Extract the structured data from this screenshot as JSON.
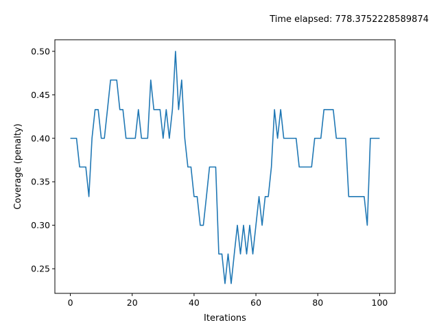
{
  "chart_data": {
    "type": "line",
    "title": "Time elapsed: 778.3752228589874",
    "xlabel": "Iterations",
    "ylabel": "Coverage (penalty)",
    "xlim": [
      -5,
      105
    ],
    "ylim": [
      0.2217,
      0.5133
    ],
    "xticks": [
      0,
      20,
      40,
      60,
      80,
      100
    ],
    "yticks": [
      0.25,
      0.3,
      0.35,
      0.4,
      0.45,
      0.5
    ],
    "grid": false,
    "colors": {
      "line": "#1f77b4",
      "axes": "#000000",
      "background": "#ffffff"
    },
    "series": [
      {
        "x": [
          0,
          1,
          2,
          3,
          4,
          5,
          6,
          7,
          8,
          9,
          10,
          11,
          12,
          13,
          14,
          15,
          16,
          17,
          18,
          19,
          20,
          21,
          22,
          23,
          24,
          25,
          26,
          27,
          28,
          29,
          30,
          31,
          32,
          33,
          34,
          35,
          36,
          37,
          38,
          39,
          40,
          41,
          42,
          43,
          44,
          45,
          46,
          47,
          48,
          49,
          50,
          51,
          52,
          53,
          54,
          55,
          56,
          57,
          58,
          59,
          60,
          61,
          62,
          63,
          64,
          65,
          66,
          67,
          68,
          69,
          70,
          71,
          72,
          73,
          74,
          75,
          76,
          77,
          78,
          79,
          80,
          81,
          82,
          83,
          84,
          85,
          86,
          87,
          88,
          89,
          90,
          91,
          92,
          93,
          94,
          95,
          96,
          97,
          98,
          99,
          100
        ],
        "y": [
          0.4,
          0.4,
          0.4,
          0.367,
          0.367,
          0.367,
          0.333,
          0.4,
          0.433,
          0.433,
          0.4,
          0.4,
          0.433,
          0.467,
          0.467,
          0.467,
          0.433,
          0.433,
          0.4,
          0.4,
          0.4,
          0.4,
          0.433,
          0.4,
          0.4,
          0.4,
          0.467,
          0.433,
          0.433,
          0.433,
          0.4,
          0.433,
          0.4,
          0.433,
          0.5,
          0.433,
          0.467,
          0.4,
          0.367,
          0.367,
          0.333,
          0.333,
          0.3,
          0.3,
          0.333,
          0.367,
          0.367,
          0.367,
          0.267,
          0.267,
          0.233,
          0.267,
          0.233,
          0.267,
          0.3,
          0.267,
          0.3,
          0.267,
          0.3,
          0.267,
          0.3,
          0.333,
          0.3,
          0.333,
          0.333,
          0.367,
          0.433,
          0.4,
          0.433,
          0.4,
          0.4,
          0.4,
          0.4,
          0.4,
          0.367,
          0.367,
          0.367,
          0.367,
          0.367,
          0.4,
          0.4,
          0.4,
          0.433,
          0.433,
          0.433,
          0.433,
          0.4,
          0.4,
          0.4,
          0.4,
          0.333,
          0.333,
          0.333,
          0.333,
          0.333,
          0.333,
          0.3,
          0.4,
          0.4,
          0.4,
          0.4
        ]
      }
    ]
  }
}
